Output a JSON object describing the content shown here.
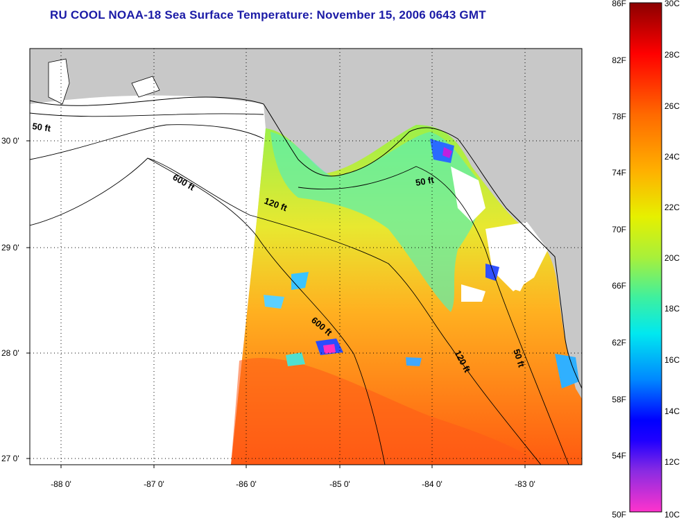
{
  "title": "RU COOL  NOAA-18  Sea Surface Temperature:  November 15, 2006 0643 GMT",
  "map": {
    "lat_labels": [
      "30 0'",
      "29 0'",
      "28 0'",
      "27 0'"
    ],
    "lon_labels": [
      "-88 0'",
      "-87 0'",
      "-86 0'",
      "-85 0'",
      "-84 0'",
      "-83 0'"
    ],
    "contours": [
      {
        "label": "50 ft"
      },
      {
        "label": "600 ft"
      },
      {
        "label": "120 ft"
      },
      {
        "label": "50 ft"
      },
      {
        "label": "600 ft"
      },
      {
        "label": "120 ft"
      },
      {
        "label": "50 ft"
      }
    ],
    "colors": {
      "land": "#c8c8c8",
      "no_data": "#ffffff",
      "grid": "#000000"
    }
  },
  "colorbar": {
    "fahrenheit_labels": [
      "86F",
      "82F",
      "78F",
      "74F",
      "70F",
      "66F",
      "62F",
      "58F",
      "54F",
      "50F"
    ],
    "celsius_labels": [
      "30C",
      "28C",
      "26C",
      "24C",
      "22C",
      "20C",
      "18C",
      "16C",
      "14C",
      "12C",
      "10C"
    ]
  }
}
